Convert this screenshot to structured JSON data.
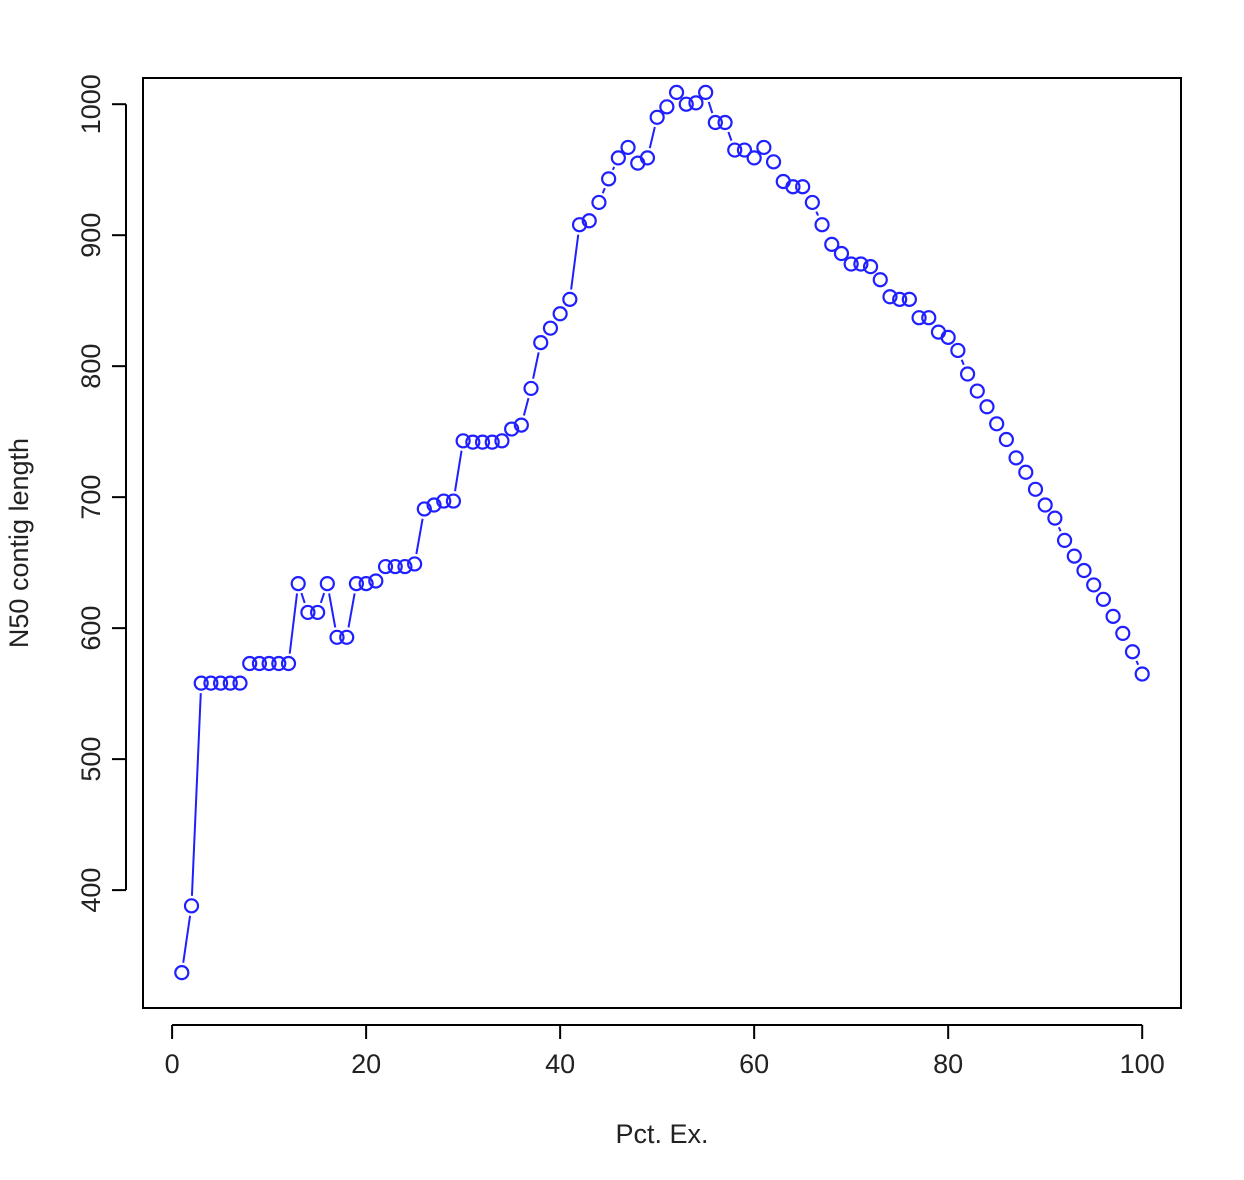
{
  "colors": {
    "series": "#1f1fff",
    "axis": "#000000",
    "background": "#ffffff"
  },
  "chart_data": {
    "type": "scatter",
    "title": "",
    "xlabel": "Pct. Ex.",
    "ylabel": "N50 contig length",
    "xlim": [
      -3,
      104
    ],
    "ylim": [
      310,
      1020
    ],
    "xticks": [
      0,
      20,
      40,
      60,
      80,
      100
    ],
    "yticks": [
      400,
      500,
      600,
      700,
      800,
      900,
      1000
    ],
    "grid": false,
    "legend": "none",
    "point_style": "open-circle",
    "connecting_line": "segments-between-points",
    "series": [
      {
        "x": [
          1,
          2,
          3,
          4,
          5,
          6,
          7,
          8,
          9,
          10,
          11,
          12,
          13,
          14,
          15,
          16,
          17,
          18,
          19,
          20,
          21,
          22,
          23,
          24,
          25,
          26,
          27,
          28,
          29,
          30,
          31,
          32,
          33,
          34,
          35,
          36,
          37,
          38,
          39,
          40,
          41,
          42,
          43,
          44,
          45,
          46,
          47,
          48,
          49,
          50,
          51,
          52,
          53,
          54,
          55,
          56,
          57,
          58,
          59,
          60,
          61,
          62,
          63,
          64,
          65,
          66,
          67,
          68,
          69,
          70,
          71,
          72,
          73,
          74,
          75,
          76,
          77,
          78,
          79,
          80,
          81,
          82,
          83,
          84,
          85,
          86,
          87,
          88,
          89,
          90,
          91,
          92,
          93,
          94,
          95,
          96,
          97,
          98,
          99,
          100
        ],
        "y": [
          337,
          388,
          558,
          558,
          558,
          558,
          558,
          573,
          573,
          573,
          573,
          573,
          634,
          612,
          612,
          634,
          593,
          593,
          634,
          634,
          636,
          647,
          647,
          647,
          649,
          691,
          694,
          697,
          697,
          743,
          742,
          742,
          742,
          743,
          752,
          755,
          783,
          818,
          829,
          840,
          851,
          908,
          911,
          925,
          943,
          959,
          967,
          955,
          959,
          990,
          998,
          1009,
          1000,
          1001,
          1009,
          986,
          986,
          965,
          965,
          959,
          967,
          956,
          941,
          937,
          937,
          925,
          908,
          893,
          886,
          878,
          878,
          876,
          866,
          853,
          851,
          851,
          837,
          837,
          826,
          822,
          812,
          794,
          781,
          769,
          756,
          744,
          730,
          719,
          706,
          694,
          684,
          667,
          655,
          644,
          633,
          622,
          609,
          596,
          582,
          565
        ]
      }
    ]
  }
}
